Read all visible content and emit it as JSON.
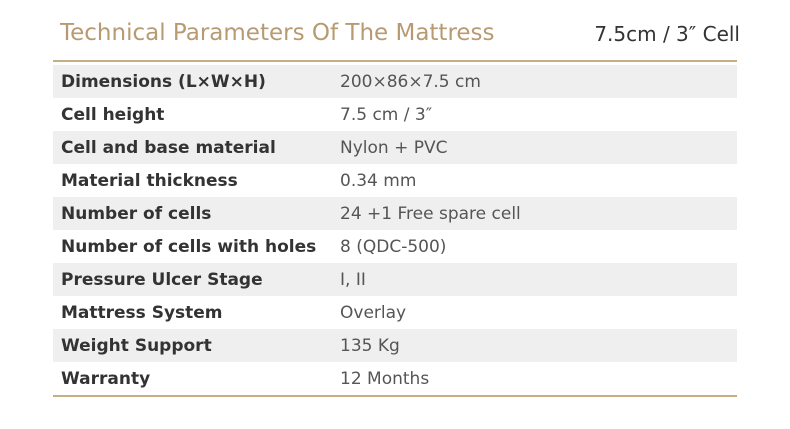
{
  "header": {
    "title": "Technical Parameters Of The Mattress",
    "subtitle": "7.5cm / 3″ Cell"
  },
  "table": {
    "rows": [
      [
        "Dimensions (L×W×H)",
        "200×86×7.5 cm"
      ],
      [
        "Cell height",
        "7.5 cm / 3″"
      ],
      [
        "Cell and base material",
        "Nylon + PVC"
      ],
      [
        "Material thickness",
        "0.34 mm"
      ],
      [
        "Number of cells",
        "24 +1 Free spare cell"
      ],
      [
        "Number of cells with holes",
        "8 (QDC-500)"
      ],
      [
        "Pressure Ulcer Stage",
        "I, II"
      ],
      [
        "Mattress System",
        "Overlay"
      ],
      [
        "Weight Support",
        "135 Kg"
      ],
      [
        "Warranty",
        "12 Months"
      ]
    ]
  }
}
